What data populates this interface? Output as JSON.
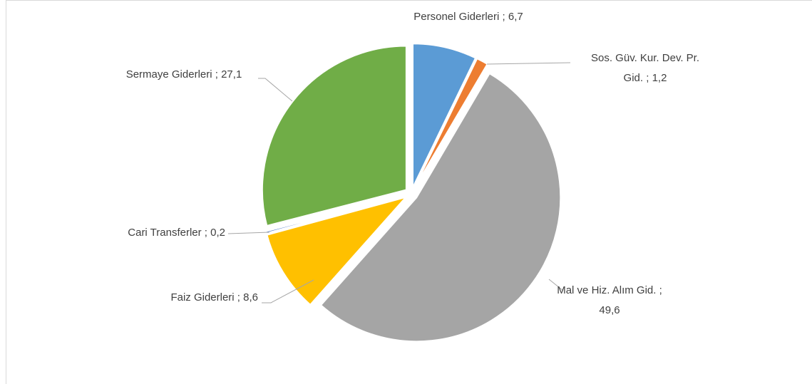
{
  "chart_data": {
    "type": "pie",
    "categories": [
      "Personel Giderleri",
      "Sos. Güv. Kur. Dev. Pr. Gid.",
      "Mal ve Hiz. Alım Gid.",
      "Faiz Giderleri",
      "Cari Transferler",
      "Sermaye Giderleri"
    ],
    "values": [
      6.7,
      1.2,
      49.6,
      8.6,
      0.2,
      27.1
    ],
    "value_labels": [
      "6,7",
      "1,2",
      "49,6",
      "8,6",
      "0,2",
      "27,1"
    ],
    "label_separator": ";",
    "colors": [
      "#5b9bd5",
      "#ed7d31",
      "#a5a5a5",
      "#ffc000",
      "#4472c4",
      "#70ad47"
    ],
    "exploded": true
  }
}
